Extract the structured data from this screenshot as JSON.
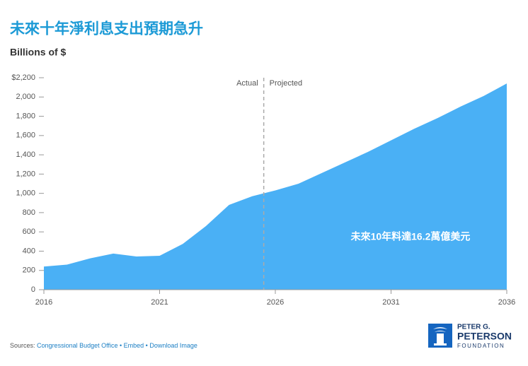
{
  "chart_data": {
    "type": "area",
    "title": "未來十年淨利息支出預期急升",
    "y_label": "Billions of $",
    "x": [
      2016,
      2017,
      2018,
      2019,
      2020,
      2021,
      2022,
      2023,
      2024,
      2025,
      2026,
      2027,
      2028,
      2029,
      2030,
      2031,
      2032,
      2033,
      2034,
      2035,
      2036
    ],
    "values": [
      240,
      260,
      325,
      375,
      345,
      352,
      475,
      660,
      880,
      970,
      1030,
      1100,
      1210,
      1320,
      1430,
      1550,
      1670,
      1780,
      1900,
      2010,
      2140
    ],
    "color": "#4ab0f5",
    "xlim": [
      2016,
      2036
    ],
    "xticks": [
      2016,
      2021,
      2026,
      2031,
      2036
    ],
    "ylim": [
      0,
      2200
    ],
    "yticks": [
      0,
      200,
      400,
      600,
      800,
      {
        "value": 1000,
        "label": "1,000"
      },
      {
        "value": 1200,
        "label": "1,200"
      },
      {
        "value": 1400,
        "label": "1,400"
      },
      {
        "value": 1600,
        "label": "1,600"
      },
      {
        "value": 1800,
        "label": "1,800"
      },
      {
        "value": 2000,
        "label": "2,000"
      },
      {
        "value": 2200,
        "label": "$2,200"
      }
    ],
    "grid": false,
    "divider": {
      "x": 2025.5,
      "left_label": "Actual",
      "right_label": "Projected"
    },
    "annotation": "未來10年料達16.2萬億美元"
  },
  "footer": {
    "sources_label": "Sources:",
    "links": [
      "Congressional Budget Office",
      "Embed",
      "Download Image"
    ]
  },
  "logo": {
    "line1": "PETER G.",
    "line2": "PETERSON",
    "line3": "FOUNDATION"
  }
}
